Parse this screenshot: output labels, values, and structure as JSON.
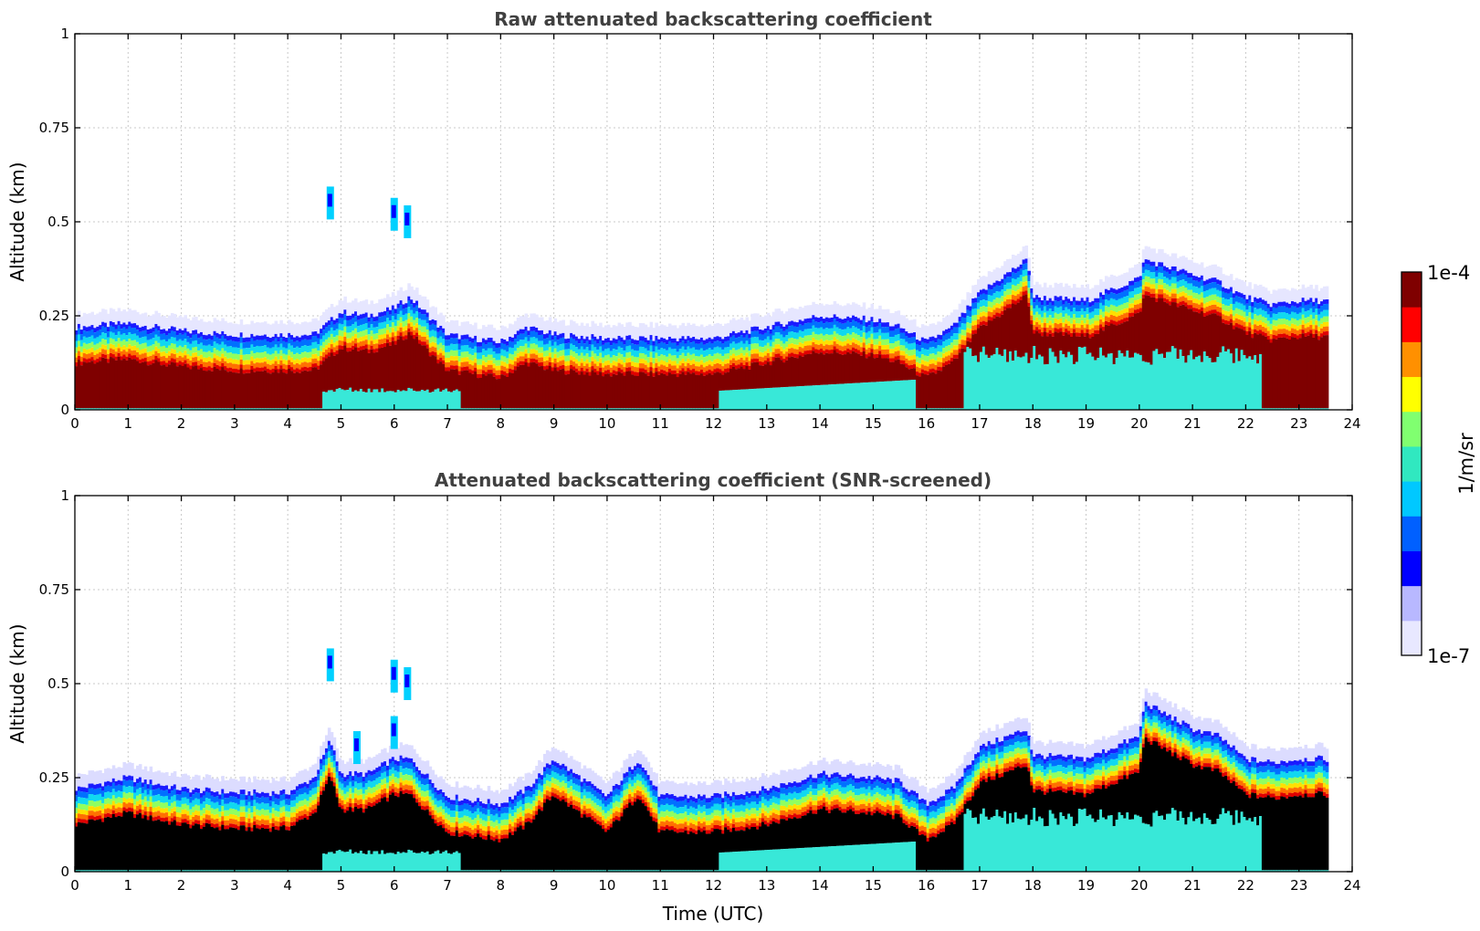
{
  "chart_data": [
    {
      "type": "heatmap",
      "title": "Raw attenuated backscattering coefficient",
      "xlabel": "",
      "ylabel": "Altitude (km)",
      "xlim": [
        0,
        24
      ],
      "ylim": [
        0,
        1
      ],
      "xticks": [
        0,
        1,
        2,
        3,
        4,
        5,
        6,
        7,
        8,
        9,
        10,
        11,
        12,
        13,
        14,
        15,
        16,
        17,
        18,
        19,
        20,
        21,
        22,
        23,
        24
      ],
      "xtick_labels": [
        "0",
        "1",
        "2",
        "3",
        "4",
        "5",
        "6",
        "7",
        "8",
        "9",
        "10",
        "11",
        "12",
        "13",
        "14",
        "15",
        "16",
        "17",
        "18",
        "19",
        "20",
        "21",
        "22",
        "23",
        "24"
      ],
      "yticks": [
        0,
        0.25,
        0.5,
        0.75,
        1
      ],
      "ytick_labels": [
        "0",
        "0.25",
        "0.5",
        "0.75",
        "1"
      ],
      "data_end_hour": 23.55,
      "grid": true,
      "layer_top_km": {
        "hours": [
          0,
          1,
          2,
          3,
          4,
          4.5,
          5,
          5.5,
          6,
          6.3,
          7,
          8,
          8.5,
          9,
          10,
          11,
          12,
          13,
          14,
          15,
          15.5,
          16,
          16.5,
          17,
          17.9,
          18,
          19,
          20,
          20.1,
          21,
          21.5,
          22,
          22.5,
          23,
          23.55
        ],
        "values": [
          0.22,
          0.23,
          0.21,
          0.2,
          0.2,
          0.2,
          0.26,
          0.25,
          0.27,
          0.3,
          0.2,
          0.18,
          0.22,
          0.2,
          0.19,
          0.19,
          0.19,
          0.22,
          0.25,
          0.24,
          0.22,
          0.18,
          0.22,
          0.31,
          0.4,
          0.3,
          0.29,
          0.35,
          0.4,
          0.36,
          0.34,
          0.3,
          0.28,
          0.29,
          0.29
        ]
      },
      "cloud_patches": [
        {
          "hour": 4.8,
          "alt_km": 0.55
        },
        {
          "hour": 6.0,
          "alt_km": 0.52
        },
        {
          "hour": 6.25,
          "alt_km": 0.5
        }
      ]
    },
    {
      "type": "heatmap",
      "title": "Attenuated backscattering coefficient (SNR-screened)",
      "xlabel": "Time (UTC)",
      "ylabel": "Altitude (km)",
      "xlim": [
        0,
        24
      ],
      "ylim": [
        0,
        1
      ],
      "xticks": [
        0,
        1,
        2,
        3,
        4,
        5,
        6,
        7,
        8,
        9,
        10,
        11,
        12,
        13,
        14,
        15,
        16,
        17,
        18,
        19,
        20,
        21,
        22,
        23,
        24
      ],
      "xtick_labels": [
        "0",
        "1",
        "2",
        "3",
        "4",
        "5",
        "6",
        "7",
        "8",
        "9",
        "10",
        "11",
        "12",
        "13",
        "14",
        "15",
        "16",
        "17",
        "18",
        "19",
        "20",
        "21",
        "22",
        "23",
        "24"
      ],
      "yticks": [
        0,
        0.25,
        0.5,
        0.75,
        1
      ],
      "ytick_labels": [
        "0",
        "0.25",
        "0.5",
        "0.75",
        "1"
      ],
      "data_end_hour": 23.55,
      "grid": true,
      "layer_top_km": {
        "hours": [
          0,
          1,
          2,
          3,
          4,
          4.5,
          4.8,
          5,
          5.5,
          6,
          6.3,
          7,
          8,
          8.5,
          9,
          10,
          10.6,
          11,
          12,
          13,
          14,
          15,
          15.5,
          16,
          16.5,
          17,
          17.9,
          18,
          19,
          20,
          20.1,
          21,
          21.5,
          22,
          22.5,
          23,
          23.55
        ],
        "values": [
          0.22,
          0.25,
          0.22,
          0.21,
          0.21,
          0.25,
          0.35,
          0.26,
          0.26,
          0.3,
          0.3,
          0.2,
          0.18,
          0.22,
          0.3,
          0.2,
          0.3,
          0.2,
          0.2,
          0.22,
          0.26,
          0.25,
          0.24,
          0.18,
          0.22,
          0.33,
          0.38,
          0.31,
          0.3,
          0.36,
          0.45,
          0.38,
          0.36,
          0.3,
          0.29,
          0.3,
          0.3
        ]
      },
      "cloud_patches": [
        {
          "hour": 4.8,
          "alt_km": 0.55
        },
        {
          "hour": 5.3,
          "alt_km": 0.33
        },
        {
          "hour": 6.0,
          "alt_km": 0.52
        },
        {
          "hour": 6.25,
          "alt_km": 0.5
        },
        {
          "hour": 6.0,
          "alt_km": 0.37
        }
      ]
    }
  ],
  "colorbar": {
    "label": "1/m/sr",
    "max_label": "1e-4",
    "min_label": "1e-7",
    "scale": "log",
    "range": [
      1e-07,
      0.0001
    ],
    "colors": [
      "#e8e8ff",
      "#b8b8ff",
      "#0000ff",
      "#0060ff",
      "#00c8ff",
      "#30e8c0",
      "#80ff70",
      "#ffff00",
      "#ff9000",
      "#ff0000",
      "#7f0000"
    ]
  },
  "colors": {
    "saturated_screened": "#000000",
    "strong_signal": "#7f0000",
    "surface_layer": "#38e8d8"
  }
}
